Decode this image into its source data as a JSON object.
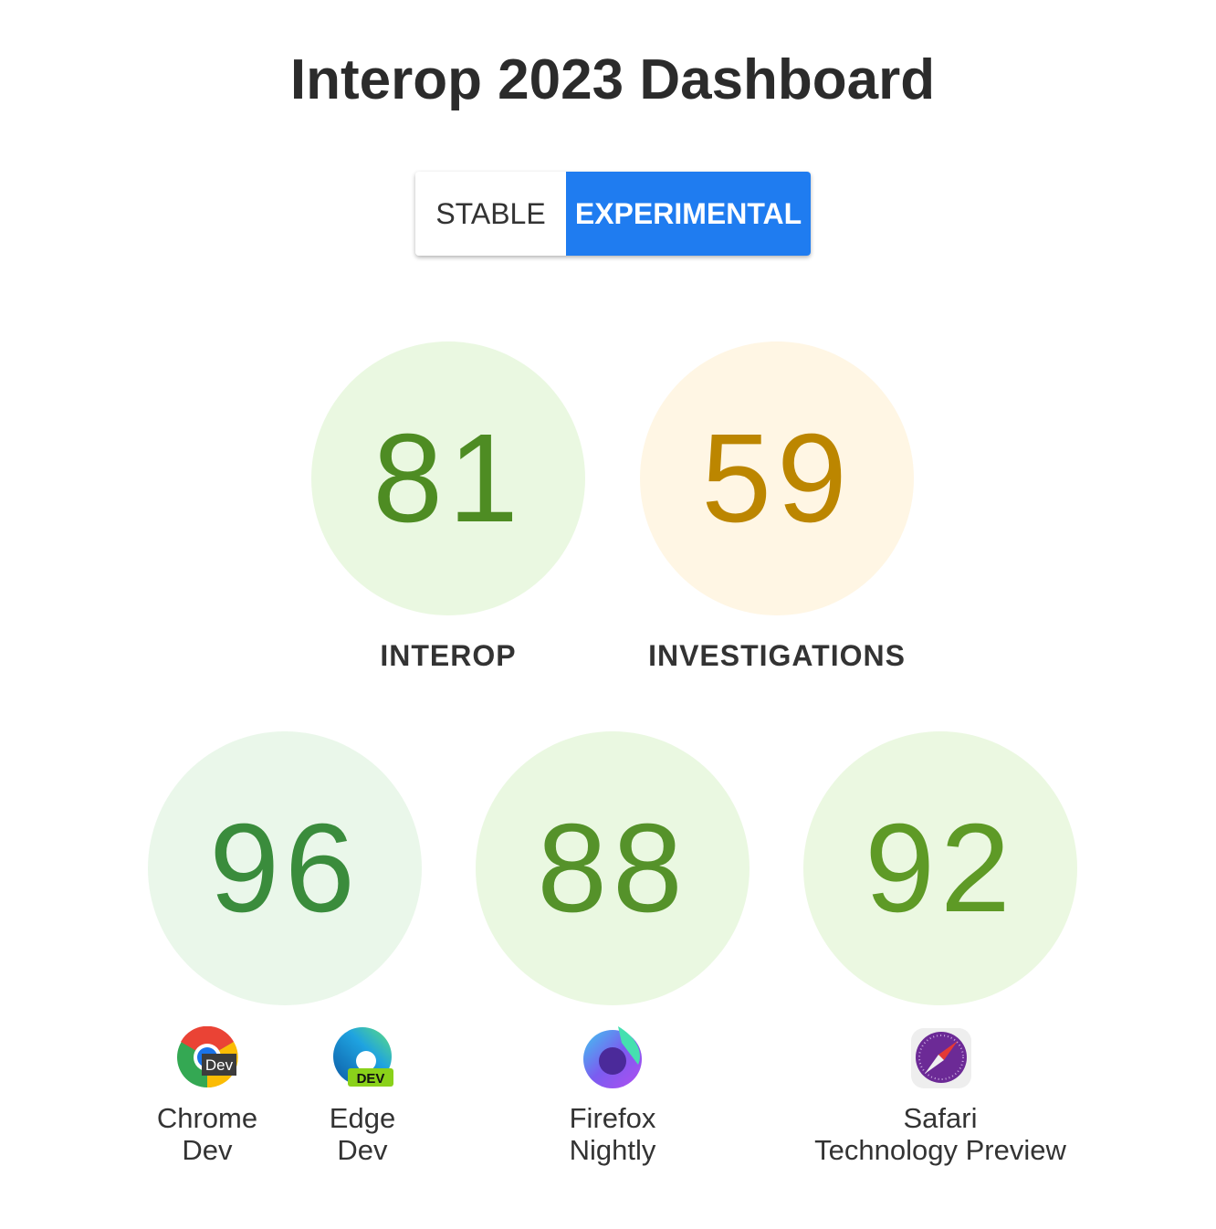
{
  "title": "Interop 2023 Dashboard",
  "toggle": {
    "stable": "STABLE",
    "experimental": "EXPERIMENTAL",
    "selected": "EXPERIMENTAL"
  },
  "summary": [
    {
      "score": "81",
      "label": "INTEROP",
      "bg": "#eaf8e1",
      "color": "#4e8c23"
    },
    {
      "score": "59",
      "label": "INVESTIGATIONS",
      "bg": "#fff6e4",
      "color": "#bc8600"
    }
  ],
  "browsers": [
    {
      "score": "96",
      "bg": "#eaf7ea",
      "color": "#3a8c3c",
      "icons": [
        {
          "icon": "chrome-dev-icon",
          "line1": "Chrome",
          "line2": "Dev"
        },
        {
          "icon": "edge-dev-icon",
          "line1": "Edge",
          "line2": "Dev",
          "badge": "DEV"
        }
      ]
    },
    {
      "score": "88",
      "bg": "#eaf8e1",
      "color": "#55922a",
      "icons": [
        {
          "icon": "firefox-nightly-icon",
          "line1": "Firefox",
          "line2": "Nightly"
        }
      ]
    },
    {
      "score": "92",
      "bg": "#ebf8e1",
      "color": "#5e9a26",
      "icons": [
        {
          "icon": "safari-tp-icon",
          "line1": "Safari",
          "line2": "Technology Preview"
        }
      ]
    }
  ],
  "chrome_badge": "Dev"
}
